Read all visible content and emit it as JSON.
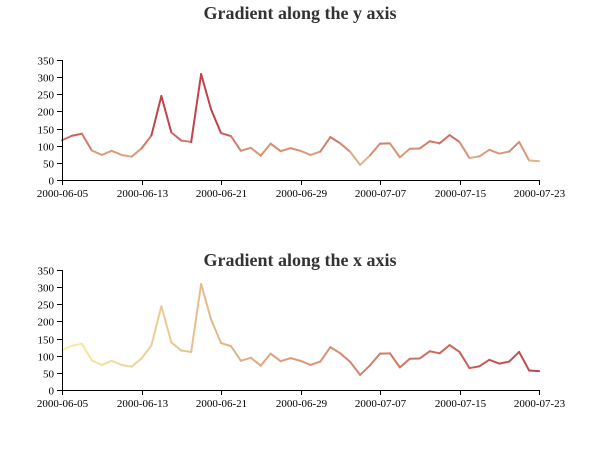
{
  "chart_data": [
    {
      "type": "line",
      "title": "Gradient along the y axis",
      "xlabel": "",
      "ylabel": "",
      "gradient": "vertical",
      "colors": {
        "low": "#f6efa6",
        "high": "#bf444c"
      },
      "x_start": "2000-06-05",
      "x": [
        "2000-06-05",
        "2000-06-06",
        "2000-06-07",
        "2000-06-08",
        "2000-06-09",
        "2000-06-10",
        "2000-06-11",
        "2000-06-12",
        "2000-06-13",
        "2000-06-14",
        "2000-06-15",
        "2000-06-16",
        "2000-06-17",
        "2000-06-18",
        "2000-06-19",
        "2000-06-20",
        "2000-06-21",
        "2000-06-22",
        "2000-06-23",
        "2000-06-24",
        "2000-06-25",
        "2000-06-26",
        "2000-06-27",
        "2000-06-28",
        "2000-06-29",
        "2000-06-30",
        "2000-07-01",
        "2000-07-02",
        "2000-07-03",
        "2000-07-04",
        "2000-07-05",
        "2000-07-06",
        "2000-07-07",
        "2000-07-08",
        "2000-07-09",
        "2000-07-10",
        "2000-07-11",
        "2000-07-12",
        "2000-07-13",
        "2000-07-14",
        "2000-07-15",
        "2000-07-16",
        "2000-07-17",
        "2000-07-18",
        "2000-07-19",
        "2000-07-20",
        "2000-07-21",
        "2000-07-22",
        "2000-07-23"
      ],
      "values": [
        116,
        129,
        135,
        86,
        73,
        85,
        73,
        68,
        92,
        130,
        245,
        139,
        115,
        111,
        309,
        206,
        137,
        128,
        85,
        94,
        71,
        106,
        84,
        93,
        85,
        73,
        83,
        125,
        107,
        82,
        44,
        72,
        106,
        107,
        66,
        91,
        92,
        113,
        107,
        131,
        111,
        64,
        69,
        88,
        77,
        83,
        111,
        57,
        55
      ],
      "xticks": [
        "2000-06-05",
        "2000-06-13",
        "2000-06-21",
        "2000-06-29",
        "2000-07-07",
        "2000-07-15",
        "2000-07-23"
      ],
      "yticks": [
        0,
        50,
        100,
        150,
        200,
        250,
        300,
        350
      ],
      "ylim": [
        0,
        350
      ],
      "grid": false,
      "legend": "none"
    },
    {
      "type": "line",
      "title": "Gradient along the x axis",
      "xlabel": "",
      "ylabel": "",
      "gradient": "horizontal",
      "colors": {
        "low": "#f6efa6",
        "high": "#bf444c"
      },
      "x_start": "2000-06-05",
      "x": [
        "2000-06-05",
        "2000-06-06",
        "2000-06-07",
        "2000-06-08",
        "2000-06-09",
        "2000-06-10",
        "2000-06-11",
        "2000-06-12",
        "2000-06-13",
        "2000-06-14",
        "2000-06-15",
        "2000-06-16",
        "2000-06-17",
        "2000-06-18",
        "2000-06-19",
        "2000-06-20",
        "2000-06-21",
        "2000-06-22",
        "2000-06-23",
        "2000-06-24",
        "2000-06-25",
        "2000-06-26",
        "2000-06-27",
        "2000-06-28",
        "2000-06-29",
        "2000-06-30",
        "2000-07-01",
        "2000-07-02",
        "2000-07-03",
        "2000-07-04",
        "2000-07-05",
        "2000-07-06",
        "2000-07-07",
        "2000-07-08",
        "2000-07-09",
        "2000-07-10",
        "2000-07-11",
        "2000-07-12",
        "2000-07-13",
        "2000-07-14",
        "2000-07-15",
        "2000-07-16",
        "2000-07-17",
        "2000-07-18",
        "2000-07-19",
        "2000-07-20",
        "2000-07-21",
        "2000-07-22",
        "2000-07-23"
      ],
      "values": [
        116,
        129,
        135,
        86,
        73,
        85,
        73,
        68,
        92,
        130,
        245,
        139,
        115,
        111,
        309,
        206,
        137,
        128,
        85,
        94,
        71,
        106,
        84,
        93,
        85,
        73,
        83,
        125,
        107,
        82,
        44,
        72,
        106,
        107,
        66,
        91,
        92,
        113,
        107,
        131,
        111,
        64,
        69,
        88,
        77,
        83,
        111,
        57,
        55
      ],
      "xticks": [
        "2000-06-05",
        "2000-06-13",
        "2000-06-21",
        "2000-06-29",
        "2000-07-07",
        "2000-07-15",
        "2000-07-23"
      ],
      "yticks": [
        0,
        50,
        100,
        150,
        200,
        250,
        300,
        350
      ],
      "ylim": [
        0,
        350
      ],
      "grid": false,
      "legend": "none"
    }
  ]
}
